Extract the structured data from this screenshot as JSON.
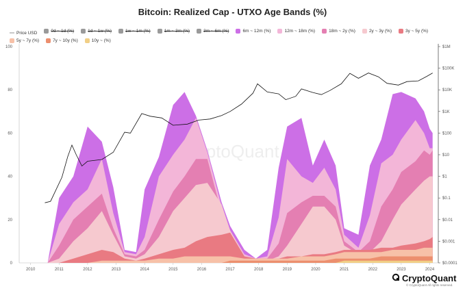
{
  "chart_data": {
    "type": "area",
    "title": "Bitcoin: Realized Cap - UTXO Age Bands (%)",
    "watermark": "CryptoQuant",
    "x_ticks": [
      "2010",
      "2011",
      "2012",
      "2013",
      "2014",
      "2015",
      "2016",
      "2017",
      "2018",
      "2019",
      "2020",
      "2021",
      "2022",
      "2023",
      "2024"
    ],
    "y_left_ticks": [
      "0",
      "20",
      "40",
      "60",
      "80",
      "100"
    ],
    "y_left_range": [
      0,
      100
    ],
    "y_right_ticks": [
      "$0.0001",
      "$0.001",
      "$0.01",
      "$0.1",
      "$1",
      "$10",
      "$100",
      "$1K",
      "$10K",
      "$100K",
      "$1M"
    ],
    "y_right_scale": "log",
    "legend": [
      {
        "label": "Price USD",
        "color": "#c8c8c8",
        "shown": true,
        "kind": "line"
      },
      {
        "label": "0d ~ 1d (%)",
        "color": "#9a9a9a",
        "shown": false
      },
      {
        "label": "1d ~ 1w (%)",
        "color": "#9a9a9a",
        "shown": false
      },
      {
        "label": "1w ~ 1m (%)",
        "color": "#9a9a9a",
        "shown": false
      },
      {
        "label": "1m ~ 3m (%)",
        "color": "#9a9a9a",
        "shown": false
      },
      {
        "label": "3m ~ 6m (%)",
        "color": "#9a9a9a",
        "shown": false
      },
      {
        "label": "6m ~ 12m (%)",
        "color": "#cc6fe6",
        "shown": true
      },
      {
        "label": "12m ~ 18m (%)",
        "color": "#f3b6d8",
        "shown": true
      },
      {
        "label": "18m ~ 2y (%)",
        "color": "#e47fb2",
        "shown": true
      },
      {
        "label": "2y ~ 3y (%)",
        "color": "#f6c9cf",
        "shown": true
      },
      {
        "label": "3y ~ 5y (%)",
        "color": "#e97a82",
        "shown": true
      },
      {
        "label": "5y ~ 7y (%)",
        "color": "#f7c1a8",
        "shown": true
      },
      {
        "label": "7y ~ 10y (%)",
        "color": "#ec8f6e",
        "shown": true
      },
      {
        "label": "10y ~ (%)",
        "color": "#f1cf86",
        "shown": true
      }
    ],
    "x": [
      2010.0,
      2010.6,
      2011.0,
      2011.5,
      2012.0,
      2012.5,
      2012.9,
      2013.3,
      2013.7,
      2014.0,
      2014.5,
      2015.0,
      2015.4,
      2015.8,
      2016.2,
      2016.7,
      2017.0,
      2017.5,
      2017.9,
      2018.3,
      2018.7,
      2019.0,
      2019.5,
      2019.9,
      2020.3,
      2020.7,
      2021.0,
      2021.5,
      2021.9,
      2022.3,
      2022.7,
      2023.0,
      2023.5,
      2023.8,
      2024.0,
      2024.1
    ],
    "series": [
      {
        "name": "6m ~ 12m (%)",
        "color": "#cc6fe6",
        "values": [
          0,
          0,
          30,
          40,
          63,
          56,
          35,
          6,
          5,
          34,
          49,
          73,
          79,
          68,
          52,
          28,
          17,
          6,
          2,
          6,
          44,
          63,
          67,
          45,
          57,
          45,
          16,
          13,
          45,
          57,
          78,
          79,
          76,
          70,
          62,
          60
        ]
      },
      {
        "name": "12m ~ 18m (%)",
        "color": "#f3b6d8",
        "values": [
          0,
          0,
          18,
          28,
          34,
          48,
          23,
          5,
          4,
          12,
          40,
          50,
          57,
          67,
          51,
          26,
          15,
          4,
          2,
          3,
          21,
          48,
          40,
          37,
          44,
          34,
          13,
          7,
          22,
          46,
          50,
          57,
          66,
          60,
          53,
          53
        ]
      },
      {
        "name": "18m ~ 2y (%)",
        "color": "#e47fb2",
        "values": [
          0,
          0,
          8,
          20,
          26,
          32,
          16,
          4,
          3,
          6,
          20,
          33,
          40,
          48,
          48,
          23,
          13,
          3,
          1,
          2,
          9,
          23,
          28,
          31,
          31,
          26,
          10,
          5,
          10,
          26,
          34,
          42,
          47,
          52,
          50,
          52
        ]
      },
      {
        "name": "2y ~ 3y (%)",
        "color": "#f6c9cf",
        "values": [
          0,
          0,
          2,
          10,
          16,
          24,
          13,
          3,
          2,
          4,
          12,
          24,
          30,
          36,
          37,
          27,
          15,
          3,
          1,
          1,
          3,
          8,
          18,
          26,
          26,
          20,
          8,
          4,
          5,
          10,
          20,
          27,
          34,
          38,
          40,
          40
        ]
      },
      {
        "name": "3y ~ 5y (%)",
        "color": "#e97a82",
        "values": [
          0,
          0,
          0,
          2,
          4,
          6,
          5,
          2,
          1,
          2,
          4,
          6,
          7,
          10,
          12,
          13,
          14,
          3,
          2,
          2,
          2,
          3,
          3,
          4,
          4,
          5,
          6,
          6,
          6,
          7,
          7,
          8,
          9,
          10,
          11,
          12
        ]
      },
      {
        "name": "5y ~ 7y (%)",
        "color": "#f7c1a8",
        "values": [
          0,
          0,
          0,
          0,
          0,
          1,
          1,
          1,
          1,
          1,
          2,
          2,
          3,
          3,
          3,
          3,
          3,
          2,
          2,
          2,
          2,
          2,
          3,
          3,
          3,
          4,
          5,
          5,
          5,
          5,
          6,
          6,
          6,
          7,
          7,
          7
        ]
      },
      {
        "name": "7y ~ 10y (%)",
        "color": "#ec8f6e",
        "values": [
          0,
          0,
          0,
          0,
          0,
          0,
          0,
          0,
          0,
          0,
          0,
          0,
          0,
          0,
          0,
          0,
          1,
          1,
          1,
          1,
          1,
          1,
          1,
          1,
          1,
          2,
          2,
          2,
          2,
          3,
          3,
          3,
          3,
          3,
          3,
          3
        ]
      },
      {
        "name": "10y ~ (%)",
        "color": "#f1cf86",
        "values": [
          0,
          0,
          0,
          0,
          0,
          0,
          0,
          0,
          0,
          0,
          0,
          0,
          0,
          0,
          0,
          0,
          0,
          0,
          0,
          0,
          0,
          0,
          0,
          0,
          0,
          0,
          1,
          1,
          1,
          1,
          1,
          1,
          1,
          1,
          1,
          1
        ]
      }
    ],
    "price": {
      "name": "Price USD",
      "x": [
        2010.5,
        2010.7,
        2010.9,
        2011.1,
        2011.3,
        2011.45,
        2011.6,
        2011.8,
        2012.0,
        2012.5,
        2012.9,
        2013.3,
        2013.5,
        2013.9,
        2014.2,
        2014.6,
        2015.0,
        2015.5,
        2015.9,
        2016.3,
        2016.7,
        2017.0,
        2017.4,
        2017.8,
        2017.96,
        2018.3,
        2018.7,
        2018.95,
        2019.3,
        2019.5,
        2019.9,
        2020.2,
        2020.5,
        2020.9,
        2021.2,
        2021.5,
        2021.85,
        2022.2,
        2022.5,
        2022.9,
        2023.2,
        2023.6,
        2023.9,
        2024.1
      ],
      "y": [
        0.06,
        0.07,
        0.25,
        0.9,
        8,
        28,
        10,
        3,
        5,
        6,
        13,
        110,
        100,
        800,
        600,
        500,
        230,
        260,
        400,
        450,
        650,
        1000,
        2200,
        7000,
        19000,
        8000,
        6500,
        3500,
        5000,
        11000,
        7500,
        6000,
        9300,
        19000,
        58000,
        34000,
        60000,
        40000,
        20000,
        16500,
        24000,
        26000,
        42000,
        60000
      ]
    },
    "footer_brand": "CryptoQuant",
    "copyright": "© CryptoQuant All rights reserved."
  }
}
